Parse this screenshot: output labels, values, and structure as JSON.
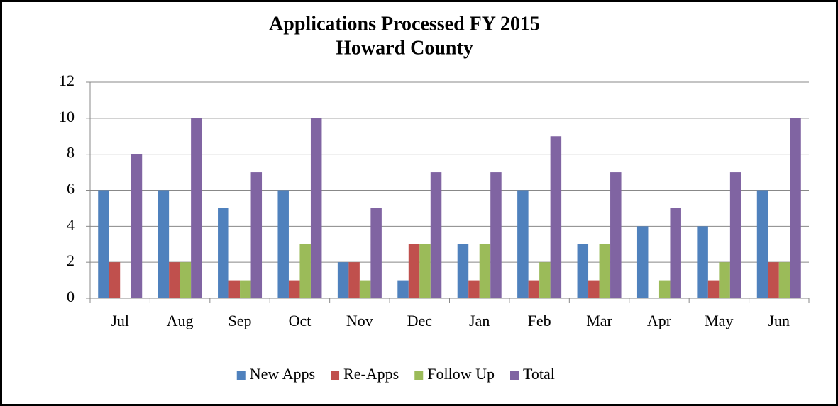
{
  "chart_data": {
    "type": "bar",
    "title": "Applications Processed FY 2015",
    "subtitle": "Howard County",
    "categories": [
      "Jul",
      "Aug",
      "Sep",
      "Oct",
      "Nov",
      "Dec",
      "Jan",
      "Feb",
      "Mar",
      "Apr",
      "May",
      "Jun"
    ],
    "series": [
      {
        "name": "New Apps",
        "color": "#4f81bd",
        "values": [
          6,
          6,
          5,
          6,
          2,
          1,
          3,
          6,
          3,
          4,
          4,
          6
        ]
      },
      {
        "name": "Re-Apps",
        "color": "#c0504d",
        "values": [
          2,
          2,
          1,
          1,
          2,
          3,
          1,
          1,
          1,
          0,
          1,
          2
        ]
      },
      {
        "name": "Follow Up",
        "color": "#9bbb59",
        "values": [
          0,
          2,
          1,
          3,
          1,
          3,
          3,
          2,
          3,
          1,
          2,
          2
        ]
      },
      {
        "name": "Total",
        "color": "#8064a2",
        "values": [
          8,
          10,
          7,
          10,
          5,
          7,
          7,
          9,
          7,
          5,
          7,
          10
        ]
      }
    ],
    "ylim": [
      0,
      12
    ],
    "yticks": [
      0,
      2,
      4,
      6,
      8,
      10,
      12
    ],
    "grid": true,
    "legend": "bottom"
  }
}
